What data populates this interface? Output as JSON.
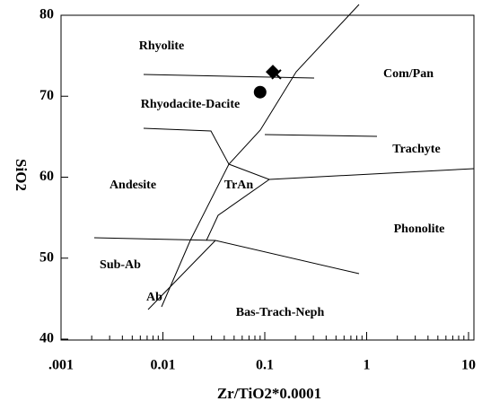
{
  "chart_data": {
    "type": "scatter",
    "x_label": "Zr/TiO2*0.0001",
    "y_label": "SiO2",
    "log_x": true,
    "xlim": [
      0.001,
      10
    ],
    "ylim": [
      40,
      80
    ],
    "xticks": [
      {
        "value": 0.001,
        "label": ".001"
      },
      0.01,
      0.1,
      1,
      10
    ],
    "yticks": [
      40,
      50,
      60,
      70,
      80
    ],
    "fields": [
      "Rhyolite",
      "Com/Pan",
      "Rhyodacite-Dacite",
      "Trachyte",
      "Andesite",
      "TrAn",
      "Phonolite",
      "Sub-Ab",
      "Ab",
      "Bas-Trach-Neph"
    ],
    "points": [
      {
        "x": 0.12,
        "y": 73,
        "marker": "diamond"
      },
      {
        "x": 0.13,
        "y": 72.7,
        "marker": "cross"
      },
      {
        "x": 0.09,
        "y": 70.5,
        "marker": "circle"
      }
    ]
  }
}
